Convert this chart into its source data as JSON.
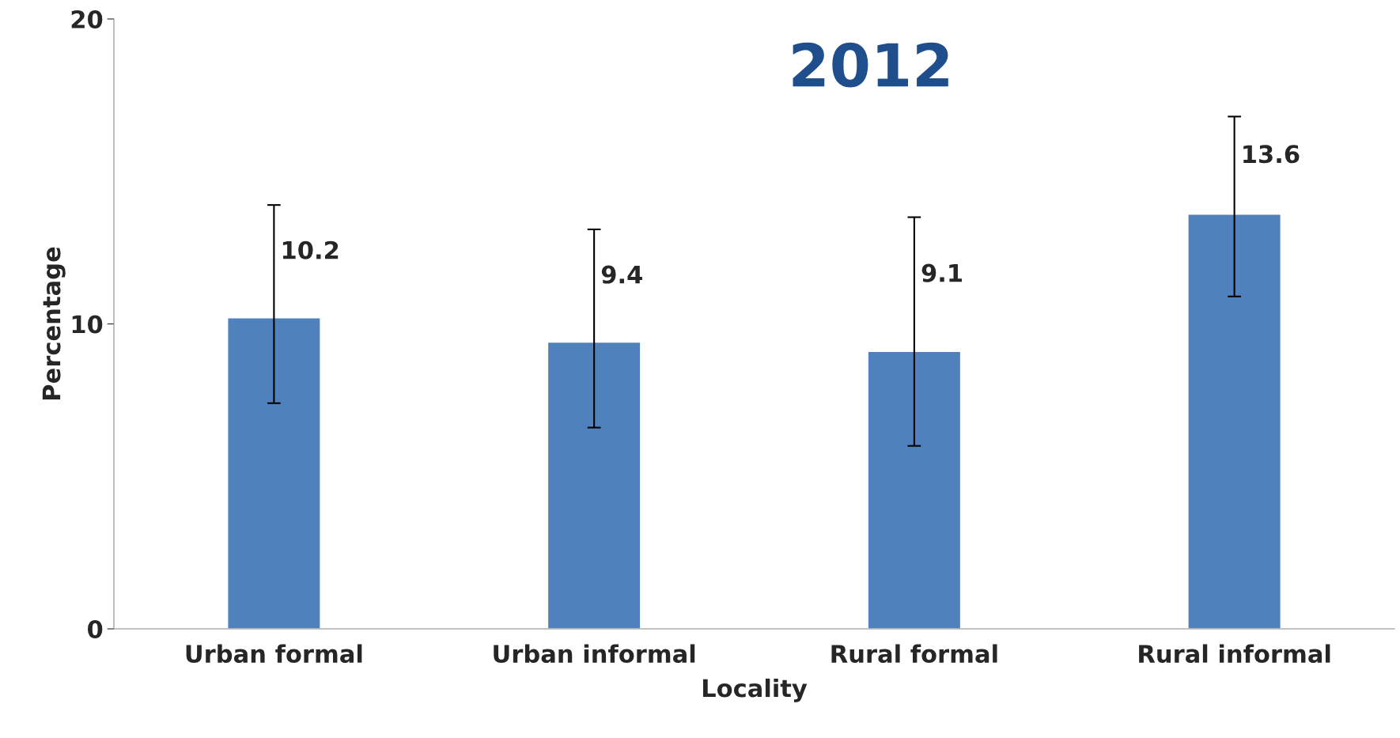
{
  "chart_data": {
    "type": "bar",
    "title": "2012",
    "xlabel": "Locality",
    "ylabel": "Percentage",
    "categories": [
      "Urban formal",
      "Urban informal",
      "Rural formal",
      "Rural informal"
    ],
    "values": [
      10.2,
      9.4,
      9.1,
      13.6
    ],
    "errors": [
      [
        7.4,
        13.9
      ],
      [
        6.6,
        13.1
      ],
      [
        6.0,
        13.5
      ],
      [
        10.9,
        16.8
      ]
    ],
    "color": "#4f81bd",
    "data_labels": true,
    "grid": false,
    "ylim": [
      0,
      20
    ],
    "yticks": [
      0,
      10,
      20
    ]
  }
}
